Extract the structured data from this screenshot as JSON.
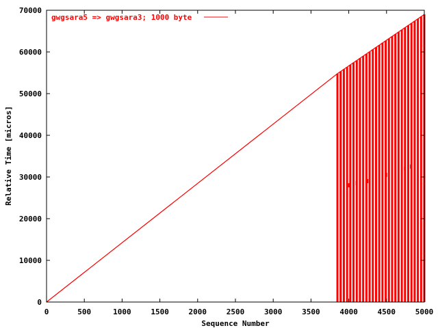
{
  "chart_data": {
    "type": "line",
    "title": "",
    "xlabel": "Sequence Number",
    "ylabel": "Relative Time [micros]",
    "xlim": [
      0,
      5000
    ],
    "ylim": [
      0,
      70000
    ],
    "xticks": [
      0,
      500,
      1000,
      1500,
      2000,
      2500,
      3000,
      3500,
      4000,
      4500,
      5000
    ],
    "yticks": [
      0,
      10000,
      20000,
      30000,
      40000,
      50000,
      60000,
      70000
    ],
    "grid": false,
    "legend_position": "top-left",
    "series": [
      {
        "name": "gwgsara5 => gwgsara3; 1000 byte",
        "color": "#ff0000",
        "x": [
          0,
          3850,
          5000
        ],
        "y": [
          0,
          54800,
          69000
        ],
        "spikes": {
          "x_start": 3850,
          "x_end": 5000,
          "count": 28,
          "drop_to": 0,
          "dips": [
            {
              "x": 4000,
              "y": 28500
            },
            {
              "x": 4100,
              "y": 29000
            },
            {
              "x": 4250,
              "y": 29500
            },
            {
              "x": 4500,
              "y": 31000
            },
            {
              "x": 4740,
              "y": 32500
            },
            {
              "x": 4820,
              "y": 33000
            }
          ]
        }
      }
    ]
  }
}
